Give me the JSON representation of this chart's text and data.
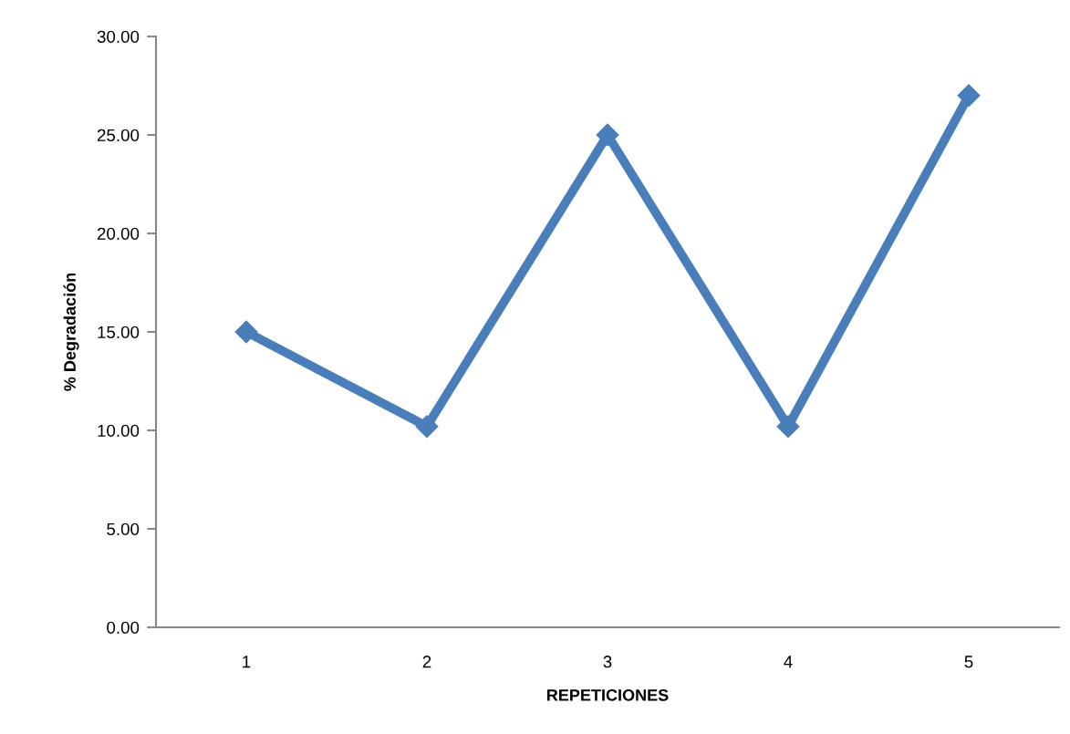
{
  "chart_data": {
    "type": "line",
    "xlabel": "REPETICIONES",
    "ylabel": "% Degradación",
    "categories": [
      "1",
      "2",
      "3",
      "4",
      "5"
    ],
    "series": [
      {
        "color": "#4a7ebb",
        "values": [
          15.0,
          10.2,
          25.0,
          10.2,
          27.0
        ]
      }
    ],
    "ylim": [
      0,
      30
    ],
    "yticks": [
      {
        "value": 0,
        "label": "0.00"
      },
      {
        "value": 5,
        "label": "5.00"
      },
      {
        "value": 10,
        "label": "10.00"
      },
      {
        "value": 15,
        "label": "15.00"
      },
      {
        "value": 20,
        "label": "20.00"
      },
      {
        "value": 25,
        "label": "25.00"
      },
      {
        "value": 30,
        "label": "30.00"
      }
    ],
    "grid": false,
    "marker": "diamond",
    "line_style": "solid"
  }
}
